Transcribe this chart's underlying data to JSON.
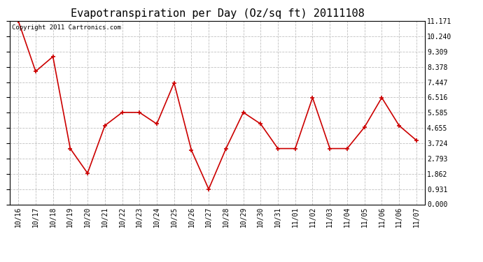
{
  "title": "Evapotranspiration per Day (Oz/sq ft) 20111108",
  "copyright_text": "Copyright 2011 Cartronics.com",
  "x_labels": [
    "10/16",
    "10/17",
    "10/18",
    "10/19",
    "10/20",
    "10/21",
    "10/22",
    "10/23",
    "10/24",
    "10/25",
    "10/26",
    "10/27",
    "10/28",
    "10/29",
    "10/30",
    "10/31",
    "11/01",
    "11/02",
    "11/03",
    "11/04",
    "11/05",
    "11/06",
    "11/06",
    "11/07"
  ],
  "y_values": [
    11.171,
    8.1,
    9.0,
    3.4,
    1.9,
    4.8,
    5.6,
    5.6,
    4.9,
    7.4,
    3.3,
    0.93,
    3.4,
    5.6,
    4.9,
    3.4,
    3.4,
    6.5,
    3.4,
    3.4,
    4.7,
    6.5,
    4.8,
    3.9
  ],
  "line_color": "#cc0000",
  "marker_color": "#cc0000",
  "bg_color": "#ffffff",
  "grid_color": "#c0c0c0",
  "y_ticks": [
    0.0,
    0.931,
    1.862,
    2.793,
    3.724,
    4.655,
    5.585,
    6.516,
    7.447,
    8.378,
    9.309,
    10.24,
    11.171
  ],
  "ylim": [
    0.0,
    11.171
  ],
  "title_fontsize": 11,
  "tick_fontsize": 7,
  "copyright_fontsize": 6.5
}
